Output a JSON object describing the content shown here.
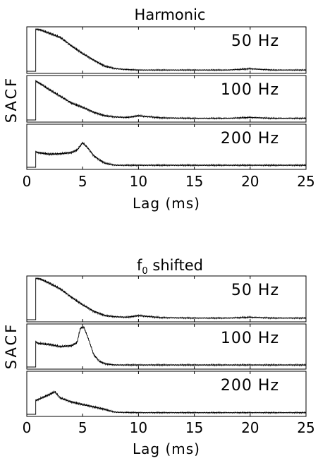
{
  "chart_data": [
    {
      "type": "line",
      "title": "Harmonic",
      "ylabel": "SACF",
      "xlabel": "Lag (ms)",
      "xlim": [
        0,
        25
      ],
      "xticks": [
        0,
        5,
        10,
        15,
        20,
        25
      ],
      "xtick_labels": [
        "0",
        "5",
        "10",
        "15",
        "20",
        "25"
      ],
      "panels": [
        {
          "label": "50 Hz",
          "x": [
            0,
            0.8,
            1.2,
            2,
            3,
            4,
            5,
            6,
            7,
            8,
            9,
            10,
            12,
            15,
            18,
            20,
            22,
            25
          ],
          "y": [
            0,
            1.0,
            0.98,
            0.9,
            0.8,
            0.6,
            0.42,
            0.26,
            0.12,
            0.06,
            0.04,
            0.03,
            0.03,
            0.03,
            0.03,
            0.06,
            0.03,
            0.03
          ]
        },
        {
          "label": "100 Hz",
          "x": [
            0,
            0.8,
            1.2,
            2,
            3,
            4,
            5,
            6,
            7,
            8,
            9,
            10,
            12,
            15,
            18,
            20,
            22,
            25
          ],
          "y": [
            0,
            0.92,
            0.86,
            0.72,
            0.56,
            0.4,
            0.3,
            0.18,
            0.1,
            0.07,
            0.06,
            0.1,
            0.05,
            0.04,
            0.04,
            0.06,
            0.04,
            0.04
          ]
        },
        {
          "label": "200 Hz",
          "x": [
            0,
            0.8,
            1,
            2,
            3,
            4,
            4.5,
            5,
            5.5,
            6,
            6.5,
            7,
            7.5,
            8,
            10,
            15,
            20,
            25
          ],
          "y": [
            0,
            0.38,
            0.36,
            0.32,
            0.33,
            0.36,
            0.42,
            0.6,
            0.46,
            0.28,
            0.18,
            0.1,
            0.07,
            0.05,
            0.05,
            0.05,
            0.05,
            0.05
          ]
        }
      ],
      "grid": false
    },
    {
      "type": "line",
      "title": "f0 shifted",
      "ylabel": "SACF",
      "xlabel": "Lag (ms)",
      "xlim": [
        0,
        25
      ],
      "xticks": [
        0,
        5,
        10,
        15,
        20,
        25
      ],
      "xtick_labels": [
        "0",
        "5",
        "10",
        "15",
        "20",
        "25"
      ],
      "panels": [
        {
          "label": "50 Hz",
          "x": [
            0,
            0.8,
            1.2,
            2,
            3,
            4,
            5,
            6,
            7,
            8,
            9,
            10,
            12,
            15,
            18,
            20,
            22,
            25
          ],
          "y": [
            0,
            1.0,
            0.98,
            0.88,
            0.74,
            0.54,
            0.36,
            0.2,
            0.1,
            0.07,
            0.06,
            0.1,
            0.05,
            0.04,
            0.04,
            0.06,
            0.04,
            0.04
          ]
        },
        {
          "label": "100 Hz",
          "x": [
            0,
            0.8,
            1,
            2,
            3,
            4,
            4.5,
            4.8,
            5.1,
            5.5,
            6,
            6.5,
            7,
            7.5,
            8,
            10,
            15,
            20,
            25
          ],
          "y": [
            0,
            0.62,
            0.58,
            0.55,
            0.5,
            0.52,
            0.6,
            0.95,
            0.98,
            0.7,
            0.3,
            0.14,
            0.08,
            0.06,
            0.05,
            0.05,
            0.05,
            0.05,
            0.05
          ]
        },
        {
          "label": "200 Hz",
          "x": [
            0,
            0.8,
            1,
            1.5,
            2,
            2.5,
            3,
            4,
            5,
            6,
            7,
            7.5,
            8,
            10,
            15,
            20,
            25
          ],
          "y": [
            0,
            0.34,
            0.36,
            0.42,
            0.48,
            0.55,
            0.4,
            0.3,
            0.24,
            0.18,
            0.12,
            0.08,
            0.05,
            0.04,
            0.04,
            0.04,
            0.04
          ]
        }
      ],
      "grid": false
    }
  ]
}
